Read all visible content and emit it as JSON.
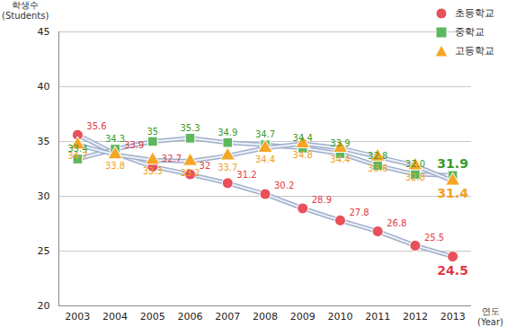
{
  "chart_data": {
    "type": "line",
    "x_label": "연도\n(Year)",
    "y_label": "학생수\n(Students)",
    "x": [
      2003,
      2004,
      2005,
      2006,
      2007,
      2008,
      2009,
      2010,
      2011,
      2012,
      2013
    ],
    "xlim": [
      2002.5,
      2013.5
    ],
    "xticks": [
      2003,
      2004,
      2005,
      2006,
      2007,
      2008,
      2009,
      2010,
      2011,
      2012,
      2013
    ],
    "ylim": [
      20,
      45
    ],
    "yticks": [
      20,
      25,
      30,
      35,
      40,
      45
    ],
    "grid": true,
    "legend": "top-right",
    "data_labels": true,
    "series": [
      {
        "name": "초등학교",
        "color": "#e8505b",
        "marker": "circle",
        "line_style": "solid",
        "values": [
          35.6,
          33.9,
          32.7,
          32,
          31.2,
          30.2,
          28.9,
          27.8,
          26.8,
          25.5,
          24.5
        ]
      },
      {
        "name": "중학교",
        "color": "#5cb85c",
        "marker": "square",
        "line_style": "solid",
        "values": [
          33.4,
          34.3,
          35,
          35.3,
          34.9,
          34.7,
          34.4,
          33.9,
          32.8,
          32.0,
          31.9
        ],
        "value_labels": [
          "33.4",
          "34.3",
          "35",
          "35.3",
          "34.9",
          "34.7",
          "34.4",
          "33.9",
          "32.8",
          "32.0",
          "31.9"
        ]
      },
      {
        "name": "고등학교",
        "color": "#f5a623",
        "marker": "triangle",
        "line_style": "solid",
        "values": [
          34.7,
          33.8,
          33.3,
          33.2,
          33.7,
          34.4,
          34.8,
          34.4,
          33.6,
          32.8,
          31.4
        ]
      }
    ]
  }
}
